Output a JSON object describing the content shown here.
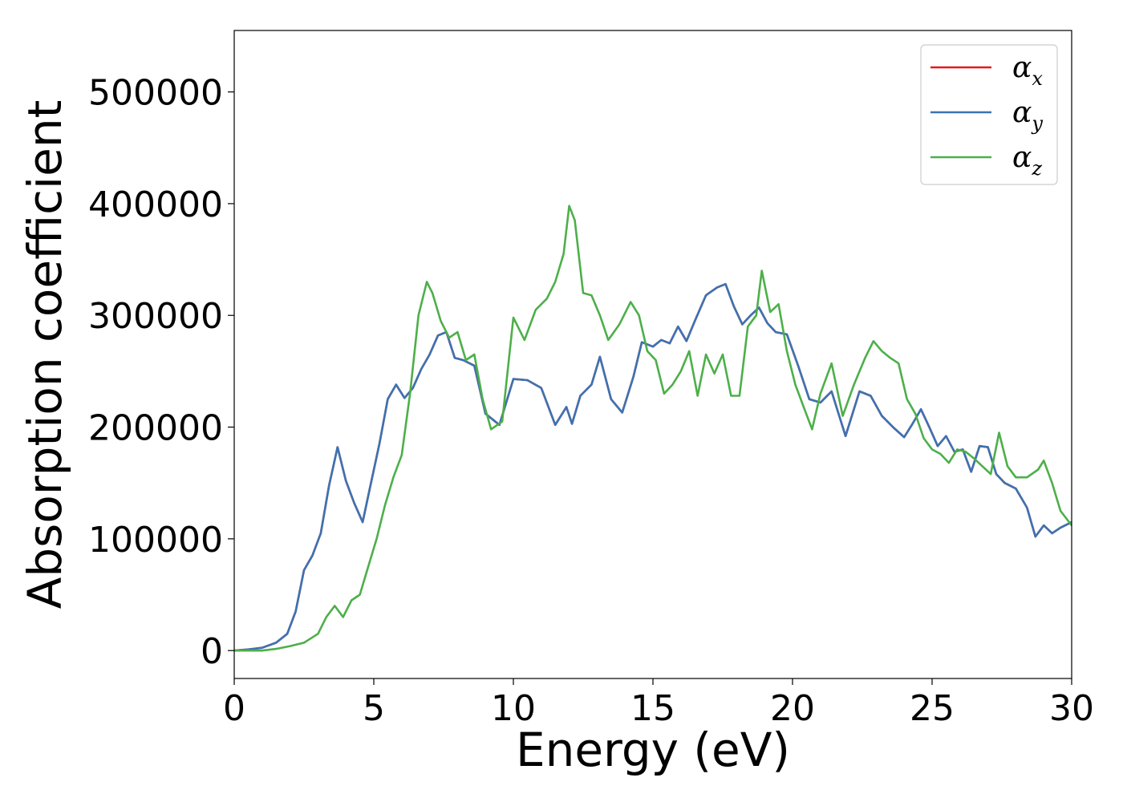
{
  "chart_data": {
    "type": "line",
    "xlabel": "Energy (eV)",
    "ylabel": "Absorption coefficient",
    "xlim": [
      0,
      30
    ],
    "ylim": [
      -25000,
      555000
    ],
    "xticks": [
      0,
      5,
      10,
      15,
      20,
      25,
      30
    ],
    "xtick_labels": [
      "0",
      "5",
      "10",
      "15",
      "20",
      "25",
      "30"
    ],
    "yticks": [
      0,
      100000,
      200000,
      300000,
      400000,
      500000
    ],
    "ytick_labels": [
      "0",
      "100000",
      "200000",
      "300000",
      "400000",
      "500000"
    ],
    "grid": false,
    "legend_position": "top-right",
    "series": [
      {
        "name": "α_x",
        "legend_main": "α",
        "legend_sub": "x",
        "color": "#e41a1c",
        "x": [
          0,
          0.5,
          1,
          1.5,
          1.9,
          2.2,
          2.5,
          2.8,
          3.1,
          3.4,
          3.7,
          4.0,
          4.3,
          4.6,
          4.9,
          5.2,
          5.5,
          5.8,
          6.1,
          6.4,
          6.7,
          7.0,
          7.3,
          7.6,
          7.9,
          8.2,
          8.6,
          9.0,
          9.5,
          10.0,
          10.5,
          11.0,
          11.5,
          11.9,
          12.1,
          12.4,
          12.8,
          13.1,
          13.5,
          13.9,
          14.3,
          14.6,
          15.0,
          15.3,
          15.6,
          15.9,
          16.2,
          16.5,
          16.9,
          17.3,
          17.6,
          17.9,
          18.2,
          18.5,
          18.8,
          19.1,
          19.4,
          19.8,
          20.2,
          20.6,
          21.0,
          21.4,
          21.9,
          22.4,
          22.8,
          23.2,
          23.6,
          24.0,
          24.3,
          24.6,
          24.9,
          25.2,
          25.5,
          25.8,
          26.1,
          26.4,
          26.7,
          27.0,
          27.3,
          27.6,
          28.0,
          28.4,
          28.7,
          29.0,
          29.3,
          29.6,
          30.0
        ],
        "y": [
          0,
          1000,
          2500,
          7000,
          15000,
          35000,
          72000,
          85000,
          105000,
          148000,
          182000,
          152000,
          132000,
          115000,
          150000,
          185000,
          225000,
          238000,
          226000,
          235000,
          252000,
          265000,
          282000,
          285000,
          262000,
          260000,
          255000,
          212000,
          202000,
          243000,
          242000,
          235000,
          202000,
          218000,
          203000,
          228000,
          238000,
          263000,
          225000,
          213000,
          245000,
          276000,
          272000,
          278000,
          275000,
          290000,
          277000,
          295000,
          318000,
          325000,
          328000,
          308000,
          292000,
          300000,
          307000,
          293000,
          285000,
          283000,
          255000,
          225000,
          222000,
          232000,
          192000,
          232000,
          228000,
          210000,
          200000,
          191000,
          203000,
          216000,
          200000,
          183000,
          192000,
          178000,
          180000,
          160000,
          183000,
          182000,
          158000,
          150000,
          145000,
          128000,
          102000,
          112000,
          105000,
          110000,
          115000
        ]
      },
      {
        "name": "α_y",
        "legend_main": "α",
        "legend_sub": "y",
        "color": "#3b73b3",
        "x": [
          0,
          0.5,
          1,
          1.5,
          1.9,
          2.2,
          2.5,
          2.8,
          3.1,
          3.4,
          3.7,
          4.0,
          4.3,
          4.6,
          4.9,
          5.2,
          5.5,
          5.8,
          6.1,
          6.4,
          6.7,
          7.0,
          7.3,
          7.6,
          7.9,
          8.2,
          8.6,
          9.0,
          9.5,
          10.0,
          10.5,
          11.0,
          11.5,
          11.9,
          12.1,
          12.4,
          12.8,
          13.1,
          13.5,
          13.9,
          14.3,
          14.6,
          15.0,
          15.3,
          15.6,
          15.9,
          16.2,
          16.5,
          16.9,
          17.3,
          17.6,
          17.9,
          18.2,
          18.5,
          18.8,
          19.1,
          19.4,
          19.8,
          20.2,
          20.6,
          21.0,
          21.4,
          21.9,
          22.4,
          22.8,
          23.2,
          23.6,
          24.0,
          24.3,
          24.6,
          24.9,
          25.2,
          25.5,
          25.8,
          26.1,
          26.4,
          26.7,
          27.0,
          27.3,
          27.6,
          28.0,
          28.4,
          28.7,
          29.0,
          29.3,
          29.6,
          30.0
        ],
        "y": [
          0,
          1000,
          2500,
          7000,
          15000,
          35000,
          72000,
          85000,
          105000,
          148000,
          182000,
          152000,
          132000,
          115000,
          150000,
          185000,
          225000,
          238000,
          226000,
          235000,
          252000,
          265000,
          282000,
          285000,
          262000,
          260000,
          255000,
          212000,
          202000,
          243000,
          242000,
          235000,
          202000,
          218000,
          203000,
          228000,
          238000,
          263000,
          225000,
          213000,
          245000,
          276000,
          272000,
          278000,
          275000,
          290000,
          277000,
          295000,
          318000,
          325000,
          328000,
          308000,
          292000,
          300000,
          307000,
          293000,
          285000,
          283000,
          255000,
          225000,
          222000,
          232000,
          192000,
          232000,
          228000,
          210000,
          200000,
          191000,
          203000,
          216000,
          200000,
          183000,
          192000,
          178000,
          180000,
          160000,
          183000,
          182000,
          158000,
          150000,
          145000,
          128000,
          102000,
          112000,
          105000,
          110000,
          115000
        ]
      },
      {
        "name": "α_z",
        "legend_main": "α",
        "legend_sub": "z",
        "color": "#4daf4a",
        "x": [
          0,
          0.5,
          1,
          1.5,
          2.0,
          2.5,
          3.0,
          3.3,
          3.6,
          3.9,
          4.2,
          4.5,
          4.8,
          5.1,
          5.4,
          5.7,
          6.0,
          6.3,
          6.6,
          6.9,
          7.1,
          7.4,
          7.7,
          8.0,
          8.3,
          8.6,
          8.9,
          9.2,
          9.6,
          10.0,
          10.4,
          10.8,
          11.2,
          11.5,
          11.8,
          12.0,
          12.2,
          12.5,
          12.8,
          13.1,
          13.4,
          13.8,
          14.2,
          14.5,
          14.8,
          15.1,
          15.4,
          15.7,
          16.0,
          16.3,
          16.6,
          16.9,
          17.2,
          17.5,
          17.8,
          18.1,
          18.4,
          18.7,
          18.9,
          19.2,
          19.5,
          19.8,
          20.1,
          20.4,
          20.7,
          21.0,
          21.4,
          21.8,
          22.2,
          22.6,
          22.9,
          23.2,
          23.5,
          23.8,
          24.1,
          24.4,
          24.7,
          25.0,
          25.3,
          25.6,
          25.9,
          26.2,
          26.5,
          26.8,
          27.1,
          27.4,
          27.7,
          28.0,
          28.4,
          28.8,
          29.0,
          29.3,
          29.6,
          30.0
        ],
        "y": [
          0,
          0,
          0,
          1500,
          4000,
          7000,
          15000,
          30000,
          40000,
          30000,
          45000,
          50000,
          75000,
          100000,
          130000,
          155000,
          175000,
          230000,
          300000,
          330000,
          320000,
          295000,
          280000,
          285000,
          260000,
          265000,
          225000,
          198000,
          205000,
          298000,
          278000,
          305000,
          315000,
          330000,
          355000,
          398000,
          385000,
          320000,
          318000,
          300000,
          278000,
          292000,
          312000,
          300000,
          268000,
          260000,
          230000,
          238000,
          250000,
          268000,
          228000,
          265000,
          248000,
          265000,
          228000,
          228000,
          290000,
          300000,
          340000,
          303000,
          310000,
          268000,
          238000,
          218000,
          198000,
          230000,
          257000,
          210000,
          238000,
          262000,
          277000,
          268000,
          262000,
          257000,
          225000,
          212000,
          190000,
          180000,
          176000,
          168000,
          180000,
          178000,
          172000,
          165000,
          158000,
          195000,
          165000,
          155000,
          155000,
          162000,
          170000,
          150000,
          125000,
          112000
        ]
      }
    ]
  }
}
